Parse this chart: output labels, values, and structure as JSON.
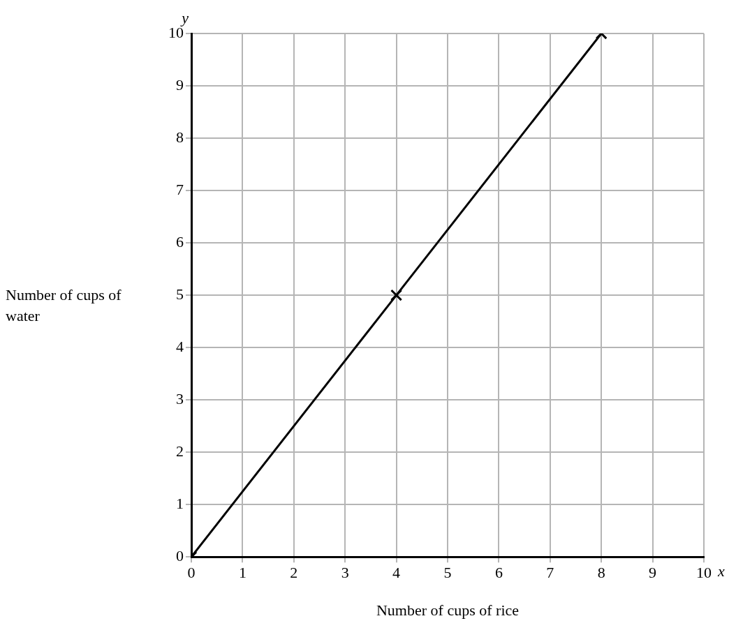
{
  "chart_data": {
    "type": "line",
    "xlabel": "Number of cups of rice",
    "ylabel": "Number of cups of water",
    "annotations": [
      "x",
      "y"
    ],
    "series": [
      {
        "color": "#000000",
        "x": [
          0,
          4,
          8
        ],
        "values": [
          0,
          5,
          10
        ]
      }
    ],
    "xlim": [
      0,
      10
    ],
    "ylim": [
      0,
      10
    ],
    "xticks": [
      0,
      1,
      2,
      3,
      4,
      5,
      6,
      7,
      8,
      9,
      10
    ],
    "yticks": [
      0,
      1,
      2,
      3,
      4,
      5,
      6,
      7,
      8,
      9,
      10
    ],
    "grid": true,
    "legend": false,
    "marker": "cross",
    "line_style": "solid"
  }
}
